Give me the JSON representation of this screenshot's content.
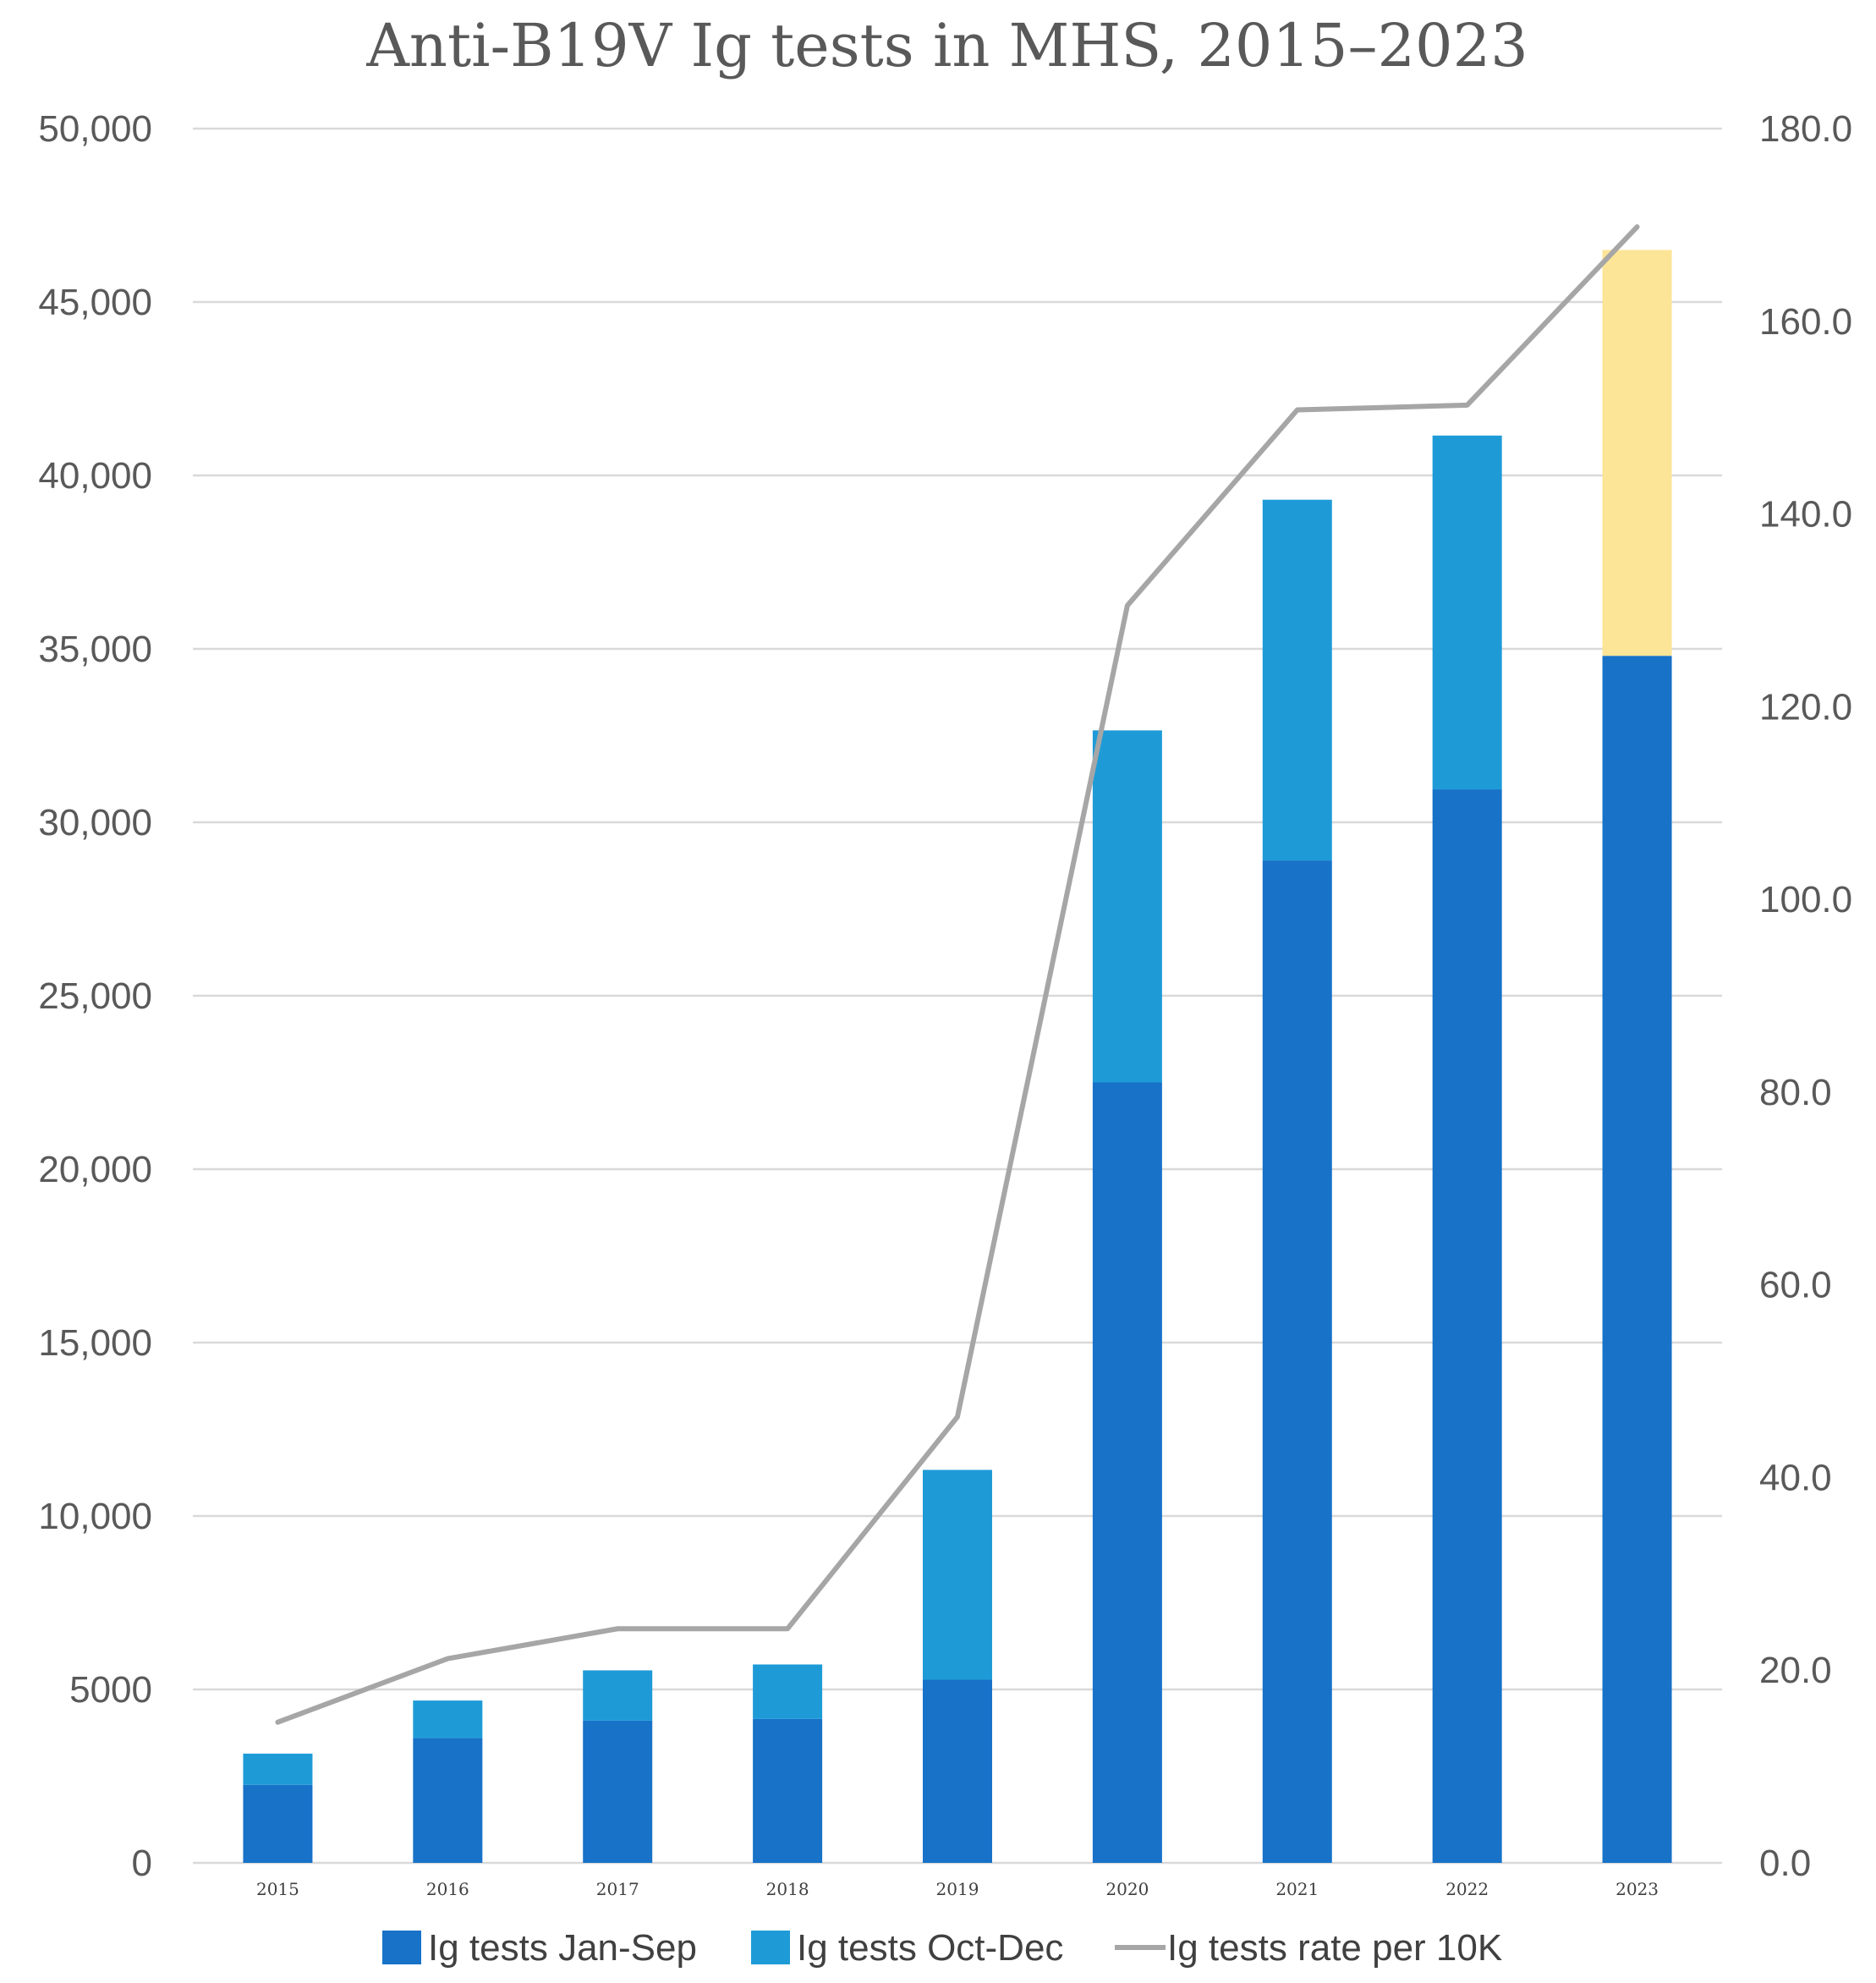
{
  "chart_data": {
    "type": "bar",
    "stacked": true,
    "title": "Anti-B19V Ig tests in MHS, 2015–2023",
    "categories": [
      "2015",
      "2016",
      "2017",
      "2018",
      "2019",
      "2020",
      "2021",
      "2022",
      "2023"
    ],
    "series": [
      {
        "name": "Ig tests Jan-Sep",
        "type": "bar",
        "axis": "left",
        "color": "#1772c8",
        "values": [
          2250,
          3600,
          4100,
          4150,
          5280,
          22500,
          28900,
          30950,
          34800
        ]
      },
      {
        "name": "Ig tests Oct-Dec",
        "type": "bar",
        "axis": "left",
        "color": "#1e9bd7",
        "colors_by_category": [
          "#1e9bd7",
          "#1e9bd7",
          "#1e9bd7",
          "#1e9bd7",
          "#1e9bd7",
          "#1e9bd7",
          "#1e9bd7",
          "#1e9bd7",
          "#fde597"
        ],
        "values": [
          900,
          1080,
          1450,
          1570,
          6050,
          10150,
          10400,
          10200,
          11700
        ]
      },
      {
        "name": "Ig tests rate per 10K",
        "type": "line",
        "axis": "right",
        "color": "#a6a6a6",
        "values": [
          14.6,
          21.2,
          24.3,
          24.3,
          46.3,
          130.5,
          150.8,
          151.3,
          169.8
        ]
      }
    ],
    "y_left": {
      "range": [
        0,
        50000
      ],
      "ticks": [
        0,
        5000,
        10000,
        15000,
        20000,
        25000,
        30000,
        35000,
        40000,
        45000,
        50000
      ],
      "tick_labels": [
        "0",
        "5000",
        "10,000",
        "15,000",
        "20,000",
        "25,000",
        "30,000",
        "35,000",
        "40,000",
        "45,000",
        "50,000"
      ]
    },
    "y_right": {
      "range": [
        0,
        180
      ],
      "ticks": [
        0,
        20,
        40,
        60,
        80,
        100,
        120,
        140,
        160,
        180
      ],
      "tick_labels": [
        "0.0",
        "20.0",
        "40.0",
        "60.0",
        "80.0",
        "100.0",
        "120.0",
        "140.0",
        "160.0",
        "180.0"
      ]
    },
    "grid": true,
    "legend": {
      "position": "bottom",
      "entries": [
        "Ig tests Jan-Sep",
        "Ig tests Oct-Dec",
        "Ig tests rate per 10K"
      ]
    }
  }
}
